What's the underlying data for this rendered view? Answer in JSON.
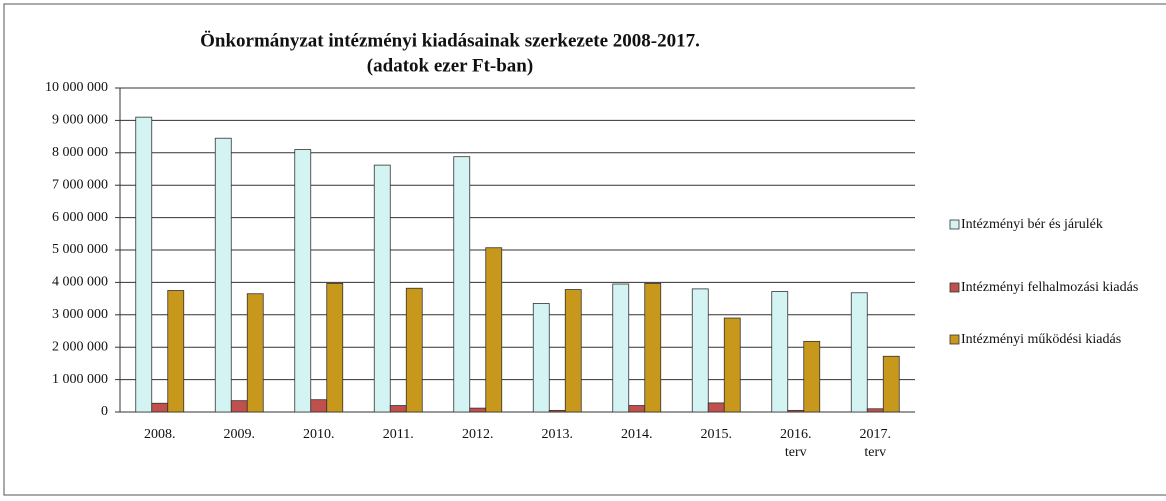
{
  "chart_data": {
    "type": "bar",
    "title": "Önkormányzat intézményi kiadásainak szerkezete 2008-2017.",
    "subtitle": "(adatok ezer Ft-ban)",
    "categories": [
      "2008.",
      "2009.",
      "2010.",
      "2011.",
      "2012.",
      "2013.",
      "2014.",
      "2015.",
      "2016. terv",
      "2017. terv"
    ],
    "series": [
      {
        "name": "Intézményi bér és járulék",
        "color": "#d4f4f4",
        "values": [
          9100000,
          8450000,
          8100000,
          7620000,
          7880000,
          3350000,
          3950000,
          3800000,
          3720000,
          3680000
        ]
      },
      {
        "name": "Intézményi felhalmozási kiadás",
        "color": "#c0504d",
        "values": [
          270000,
          350000,
          380000,
          200000,
          120000,
          50000,
          200000,
          280000,
          50000,
          100000
        ]
      },
      {
        "name": "Intézményi működési kiadás",
        "color": "#c8981c",
        "values": [
          3750000,
          3650000,
          3970000,
          3820000,
          5070000,
          3780000,
          3970000,
          2900000,
          2180000,
          1720000
        ]
      }
    ],
    "ylim": [
      0,
      10000000
    ],
    "yticks": [
      0,
      {
        "value": 1000000,
        "label": "1 000 000"
      },
      {
        "value": 2000000,
        "label": "2 000 000"
      },
      {
        "value": 3000000,
        "label": "3 000 000"
      },
      {
        "value": 4000000,
        "label": "4 000 000"
      },
      {
        "value": 5000000,
        "label": "5 000 000"
      },
      {
        "value": 6000000,
        "label": "6 000 000"
      },
      {
        "value": 7000000,
        "label": "7 000 000"
      },
      {
        "value": 8000000,
        "label": "8 000 000"
      },
      {
        "value": 9000000,
        "label": "9 000 000"
      },
      {
        "value": 10000000,
        "label": "10 000 000"
      }
    ],
    "grid": true,
    "legend": "right"
  }
}
